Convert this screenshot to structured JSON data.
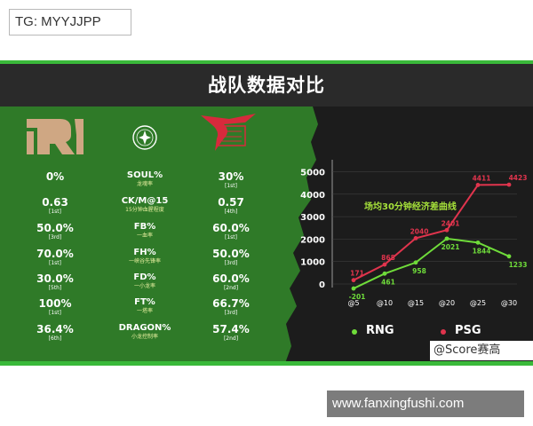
{
  "overlay_top": "TG: MYYJJPP",
  "title": "战队数据对比",
  "teams": {
    "left": "RNG",
    "right": "PSG",
    "left_color": "#6fdc3a",
    "right_color": "#e0344d"
  },
  "metrics": [
    {
      "name": "SOUL%",
      "sub": "龙魂率",
      "left": "0%",
      "left_rank": "",
      "right": "30%",
      "right_rank": "[1st]"
    },
    {
      "name": "CK/M@15",
      "sub": "15分钟血腥程度",
      "left": "0.63",
      "left_rank": "[1st]",
      "right": "0.57",
      "right_rank": "[4th]"
    },
    {
      "name": "FB%",
      "sub": "一血率",
      "left": "50.0%",
      "left_rank": "[3rd]",
      "right": "60.0%",
      "right_rank": "[1st]"
    },
    {
      "name": "FH%",
      "sub": "一峡谷先锋率",
      "left": "70.0%",
      "left_rank": "[1st]",
      "right": "50.0%",
      "right_rank": "[3rd]"
    },
    {
      "name": "FD%",
      "sub": "一小龙率",
      "left": "30.0%",
      "left_rank": "[5th]",
      "right": "60.0%",
      "right_rank": "[2nd]"
    },
    {
      "name": "FT%",
      "sub": "一塔率",
      "left": "100%",
      "left_rank": "[1st]",
      "right": "66.7%",
      "right_rank": "[3rd]"
    },
    {
      "name": "DRAGON%",
      "sub": "小龙控制率",
      "left": "36.4%",
      "left_rank": "[6th]",
      "right": "57.4%",
      "right_rank": "[2nd]"
    }
  ],
  "chart_data": {
    "type": "line",
    "title": "场均30分钟经济差曲线",
    "categories": [
      "@5",
      "@10",
      "@15",
      "@20",
      "@25",
      "@30"
    ],
    "yticks": [
      "0",
      "1000",
      "2000",
      "3000",
      "4000",
      "5000"
    ],
    "ylim": [
      -200,
      5000
    ],
    "series": [
      {
        "name": "RNG",
        "color": "#6fdc3a",
        "values": [
          -201,
          461,
          958,
          2021,
          1844,
          1233
        ]
      },
      {
        "name": "PSG",
        "color": "#e0344d",
        "values": [
          171,
          868,
          2040,
          2401,
          4411,
          4423
        ]
      }
    ],
    "legend_position": "bottom"
  },
  "watermark": "@Score赛高",
  "url": "www.fanxingfushi.com"
}
